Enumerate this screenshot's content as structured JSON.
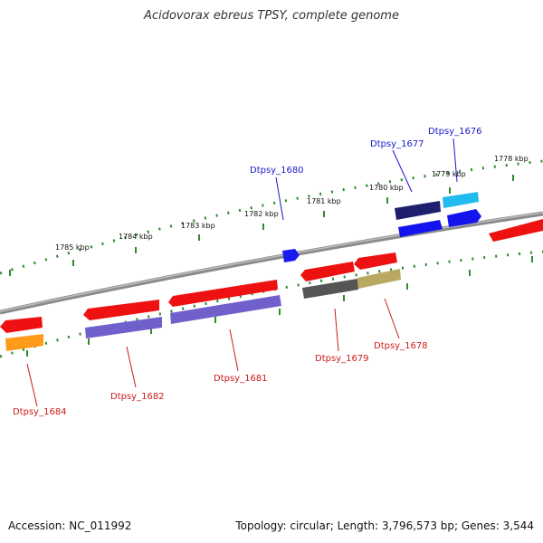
{
  "title": "Acidovorax ebreus TPSY, complete genome",
  "accession_text": "Accession: NC_011992",
  "summary_text": "Topology: circular; Length: 3,796,573 bp; Genes: 3,544",
  "colors": {
    "backbone": "#8a8a8a",
    "ruler_ticks": "#2e8b2e",
    "label_forward": "#1a1acc",
    "label_reverse": "#cc1a1a"
  },
  "kbp_ticks": [
    "1785 kbp",
    "1784 kbp",
    "1783 kbp",
    "1782 kbp",
    "1781 kbp",
    "1780 kbp",
    "1779 kbp",
    "1778 kbp"
  ],
  "gene_labels": [
    "Dtpsy_1684",
    "Dtpsy_1682",
    "Dtpsy_1681",
    "Dtpsy_1680",
    "Dtpsy_1679",
    "Dtpsy_1678",
    "Dtpsy_1677",
    "Dtpsy_1676"
  ]
}
